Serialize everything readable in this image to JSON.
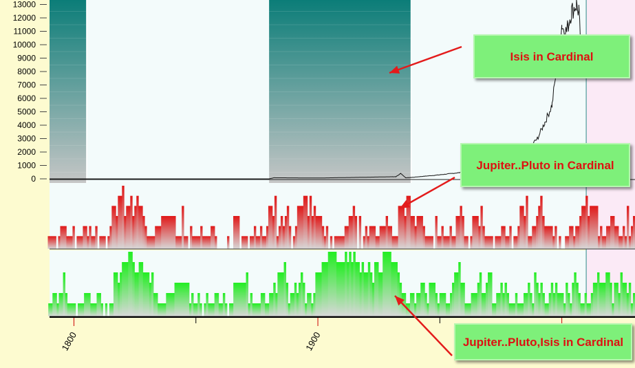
{
  "chart_data": [
    {
      "type": "area",
      "y_ticks": [
        "13000",
        "12000",
        "11000",
        "10000",
        "9000",
        "8000",
        "7000",
        "6000",
        "5000",
        "4000",
        "3000",
        "2000",
        "1000",
        "0"
      ],
      "ylim": [
        0,
        13000
      ],
      "xlim": [
        1790,
        2030
      ],
      "x_ticks": [
        "1800",
        "1900"
      ],
      "highlight_periods": [
        [
          1790,
          1805
        ],
        [
          1880,
          1938
        ]
      ],
      "future_period": [
        2010,
        2030
      ],
      "series": [
        {
          "x": [
            1790,
            1880,
            1882,
            1900,
            1920,
            1932,
            1934,
            1936,
            1938,
            1950,
            1960,
            1965,
            1970,
            1975,
            1980,
            1985,
            1990,
            1993,
            1996,
            1999,
            2000,
            2001,
            2002,
            2003,
            2004,
            2006,
            2007,
            2008,
            2009
          ],
          "y": [
            0,
            0,
            80,
            60,
            120,
            160,
            400,
            80,
            100,
            300,
            500,
            700,
            800,
            850,
            1100,
            2000,
            3000,
            4200,
            5500,
            10000,
            11500,
            11000,
            11000,
            11800,
            12500,
            13000,
            12400,
            9000,
            8200
          ]
        }
      ]
    },
    {
      "type": "bar",
      "style": "red",
      "period_start": 1780,
      "period_end": 2030,
      "levels": [
        4,
        2,
        1,
        2,
        2,
        1,
        2,
        1,
        1,
        0,
        0,
        1,
        1,
        1,
        1,
        0,
        1,
        2,
        2,
        2,
        1,
        1,
        1,
        2,
        0,
        1,
        1,
        1,
        2,
        2,
        1,
        2,
        1,
        1,
        2,
        0,
        1,
        1,
        1,
        0,
        1,
        2,
        4,
        4,
        3,
        5,
        5,
        6,
        3,
        4,
        4,
        5,
        3,
        4,
        5,
        4,
        4,
        3,
        2,
        1,
        1,
        1,
        1,
        2,
        2,
        2,
        3,
        3,
        3,
        3,
        3,
        3,
        3,
        1,
        1,
        1,
        4,
        1,
        1,
        0,
        2,
        1,
        1,
        1,
        1,
        2,
        1,
        1,
        1,
        1,
        2,
        2,
        1,
        0,
        0,
        0,
        0,
        0,
        1,
        0,
        0,
        3,
        3,
        3,
        0,
        1,
        1,
        1,
        0,
        1,
        1,
        2,
        1,
        1,
        2,
        1,
        1,
        2,
        4,
        4,
        3,
        5,
        1,
        2,
        3,
        2,
        3,
        4,
        2,
        0,
        1,
        2,
        4,
        4,
        4,
        5,
        5,
        3,
        5,
        3,
        4,
        3,
        3,
        3,
        2,
        1,
        2,
        0,
        1,
        0,
        1,
        1,
        1,
        1,
        1,
        2,
        2,
        3,
        3,
        4,
        3,
        0,
        3,
        0,
        1,
        2,
        1,
        2,
        2,
        2,
        1,
        1,
        2,
        2,
        2,
        3,
        2,
        2,
        1,
        1,
        1,
        4,
        4,
        4,
        3,
        5,
        5,
        3,
        3,
        2,
        3,
        3,
        3,
        2,
        1,
        1,
        1,
        1,
        0,
        3,
        1,
        1,
        2,
        1,
        1,
        1,
        2,
        1,
        1,
        3,
        3,
        4,
        3,
        1,
        1,
        0,
        1,
        3,
        3,
        3,
        2,
        4,
        2,
        1,
        1,
        1,
        1,
        0,
        1,
        1,
        1,
        2,
        2,
        1,
        1,
        2,
        0,
        1,
        1,
        2,
        4,
        4,
        3,
        5,
        1,
        1,
        2,
        2,
        3,
        4,
        5,
        3,
        2,
        2,
        2,
        2,
        1,
        2,
        0,
        1,
        0,
        0,
        1,
        1,
        2,
        2,
        1,
        2,
        2,
        3,
        4,
        4,
        5,
        3,
        4,
        4,
        4,
        4,
        1,
        2,
        1,
        1,
        2,
        2,
        3,
        3,
        2,
        2,
        1,
        1,
        2,
        1,
        4,
        1,
        2,
        3
      ]
    },
    {
      "type": "bar",
      "style": "green",
      "period_start": 1780,
      "period_end": 2030,
      "levels": [
        4,
        4,
        2,
        3,
        2,
        3,
        2,
        1,
        2,
        2,
        1,
        1,
        1,
        2,
        2,
        1,
        2,
        2,
        4,
        2,
        1,
        1,
        1,
        1,
        0,
        1,
        1,
        1,
        2,
        2,
        2,
        1,
        1,
        1,
        2,
        2,
        1,
        0,
        1,
        0,
        1,
        1,
        4,
        4,
        3,
        4,
        5,
        5,
        5,
        6,
        6,
        5,
        4,
        4,
        5,
        5,
        4,
        4,
        4,
        3,
        4,
        2,
        2,
        1,
        1,
        1,
        1,
        2,
        2,
        2,
        2,
        3,
        3,
        3,
        3,
        3,
        3,
        3,
        1,
        2,
        1,
        1,
        2,
        1,
        0,
        1,
        2,
        1,
        1,
        1,
        2,
        2,
        1,
        1,
        2,
        1,
        0,
        1,
        1,
        3,
        3,
        3,
        3,
        3,
        3,
        4,
        1,
        2,
        1,
        1,
        1,
        1,
        2,
        2,
        1,
        1,
        2,
        2,
        3,
        2,
        4,
        4,
        4,
        5,
        3,
        1,
        2,
        2,
        3,
        2,
        3,
        4,
        3,
        1,
        2,
        2,
        1,
        2,
        4,
        4,
        4,
        5,
        5,
        5,
        6,
        6,
        6,
        6,
        5,
        5,
        5,
        5,
        6,
        5,
        6,
        5,
        6,
        5,
        5,
        4,
        5,
        4,
        4,
        5,
        4,
        3,
        5,
        5,
        4,
        4,
        6,
        6,
        6,
        6,
        5,
        5,
        5,
        4,
        3,
        2,
        2,
        1,
        1,
        2,
        2,
        1,
        2,
        2,
        3,
        3,
        2,
        1,
        3,
        3,
        3,
        2,
        1,
        2,
        2,
        2,
        1,
        1,
        2,
        3,
        4,
        4,
        5,
        3,
        3,
        1,
        1,
        1,
        2,
        2,
        2,
        3,
        4,
        2,
        2,
        3,
        4,
        4,
        1,
        1,
        2,
        2,
        3,
        2,
        3,
        2,
        1,
        1,
        1,
        2,
        1,
        1,
        1,
        2,
        2,
        3,
        2,
        1,
        4,
        3,
        2,
        3,
        2,
        1,
        1,
        2,
        3,
        2,
        3,
        2,
        2,
        2,
        1,
        3,
        2,
        1,
        3,
        4,
        3,
        2,
        1,
        1,
        2,
        1,
        1,
        2,
        3,
        3,
        4,
        3,
        3,
        3,
        4,
        4,
        3,
        1,
        3,
        3,
        2,
        4,
        3,
        3,
        2,
        3,
        1,
        2
      ]
    }
  ],
  "callouts": {
    "isis": "Isis in Cardinal",
    "jp": "Jupiter..Pluto in Cardinal",
    "jpi": "Jupiter..Pluto,Isis in Cardinal"
  }
}
